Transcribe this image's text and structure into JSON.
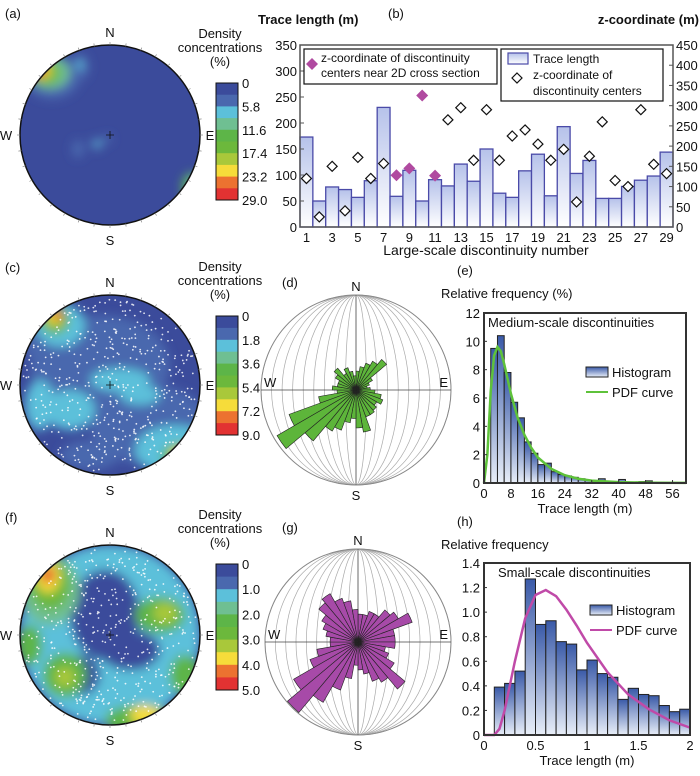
{
  "colors": {
    "colormap": [
      "#3b4b9b",
      "#4a68ae",
      "#5cc0da",
      "#6fbf92",
      "#5db548",
      "#6cb83c",
      "#a9c83a",
      "#f6dc3a",
      "#ec7230",
      "#e23232"
    ],
    "stereonet_background": "#3b4b9b",
    "bar_stroke": "#4a4aa8",
    "bar_fill_top": "#b6c2ea",
    "hist_fill_top": "#3a5aa8",
    "near_section_marker": "#b04aa0",
    "rose_d": "#5db53a",
    "rose_g": "#a74aa8",
    "pdf_e": "#5ec23a",
    "pdf_h": "#c04aa8"
  },
  "panels": {
    "a": {
      "label": "(a)",
      "compass": {
        "N": "N",
        "E": "E",
        "S": "S",
        "W": "W"
      },
      "colorbar": {
        "title": [
          "Density",
          "concentrations",
          "(%)"
        ],
        "ticks": [
          "0",
          "5.8",
          "11.6",
          "17.4",
          "23.2",
          "29.0"
        ]
      }
    },
    "b": {
      "label": "(b)"
    },
    "c": {
      "label": "(c)",
      "compass": {
        "N": "N",
        "E": "E",
        "S": "S",
        "W": "W"
      },
      "colorbar": {
        "title": [
          "Density",
          "concentrations",
          "(%)"
        ],
        "ticks": [
          "0",
          "1.8",
          "3.6",
          "5.4",
          "7.2",
          "9.0"
        ]
      }
    },
    "d": {
      "label": "(d)"
    },
    "e": {
      "label": "(e)"
    },
    "f": {
      "label": "(f)",
      "compass": {
        "N": "N",
        "E": "E",
        "S": "S",
        "W": "W"
      },
      "colorbar": {
        "title": [
          "Density",
          "concentrations",
          "(%)"
        ],
        "ticks": [
          "0",
          "1.0",
          "2.0",
          "3.0",
          "4.0",
          "5.0"
        ]
      }
    },
    "g": {
      "label": "(g)"
    },
    "h": {
      "label": "(h)"
    }
  },
  "chart_data": [
    {
      "id": "b",
      "type": "bar+scatter",
      "xlabel": "Large-scale discontinuity number",
      "ylabel": "Trace length (m)",
      "y2label": "z-coordinate (m)",
      "ylim": [
        0,
        350
      ],
      "y2lim": [
        0,
        450
      ],
      "yticks": [
        "0",
        "50",
        "100",
        "150",
        "200",
        "250",
        "300",
        "350"
      ],
      "y2ticks": [
        "0",
        "50",
        "100",
        "150",
        "200",
        "250",
        "300",
        "350",
        "400",
        "450"
      ],
      "xticks": [
        "1",
        "3",
        "5",
        "7",
        "9",
        "11",
        "13",
        "15",
        "17",
        "19",
        "21",
        "23",
        "25",
        "27",
        "29"
      ],
      "categories": [
        1,
        2,
        3,
        4,
        5,
        6,
        7,
        8,
        9,
        10,
        11,
        12,
        13,
        14,
        15,
        16,
        17,
        18,
        19,
        20,
        21,
        22,
        23,
        24,
        25,
        26,
        27,
        28,
        29
      ],
      "series": [
        {
          "name": "Trace length",
          "type": "bar",
          "axis": "left",
          "values": [
            173,
            50,
            77,
            72,
            57,
            89,
            230,
            59,
            109,
            50,
            91,
            79,
            121,
            88,
            150,
            65,
            57,
            108,
            140,
            60,
            193,
            103,
            128,
            55,
            55,
            78,
            90,
            98,
            144
          ]
        },
        {
          "name_lines": [
            "z-coordinate of",
            "discontinuity centers"
          ],
          "type": "scatter",
          "marker": "open-diamond",
          "axis": "right",
          "points": [
            [
              1,
              120
            ],
            [
              2,
              25
            ],
            [
              3,
              150
            ],
            [
              4,
              40
            ],
            [
              5,
              172
            ],
            [
              6,
              120
            ],
            [
              7,
              157
            ],
            [
              12,
              265
            ],
            [
              13,
              295
            ],
            [
              14,
              165
            ],
            [
              15,
              290
            ],
            [
              16,
              165
            ],
            [
              17,
              225
            ],
            [
              18,
              240
            ],
            [
              19,
              205
            ],
            [
              20,
              165
            ],
            [
              21,
              192
            ],
            [
              22,
              62
            ],
            [
              23,
              175
            ],
            [
              24,
              260
            ],
            [
              25,
              115
            ],
            [
              26,
              100
            ],
            [
              27,
              290
            ],
            [
              28,
              155
            ],
            [
              29,
              132
            ]
          ]
        },
        {
          "name_lines": [
            "z-coordinate of discontinuity",
            "centers near 2D cross section"
          ],
          "type": "scatter",
          "marker": "filled-diamond",
          "axis": "right",
          "points": [
            [
              8,
              128
            ],
            [
              9,
              145
            ],
            [
              10,
              325
            ],
            [
              11,
              127
            ]
          ]
        }
      ]
    },
    {
      "id": "d",
      "type": "rose",
      "bin_deg": 10,
      "compass": {
        "N": "N",
        "E": "E",
        "S": "S",
        "W": "W"
      },
      "values": [
        0.2,
        0.25,
        0.3,
        0.35,
        0.42,
        0.2,
        0.15,
        0.12,
        0.15,
        0.2,
        0.27,
        0.3,
        0.25,
        0.28,
        0.3,
        0.3,
        0.45,
        0.4,
        0.3,
        0.35,
        0.45,
        0.5,
        0.7,
        0.96,
        0.75,
        0.4,
        0.2,
        0.25,
        0.2,
        0.2,
        0.25,
        0.3,
        0.2,
        0.25,
        0.2,
        0.15
      ]
    },
    {
      "id": "e",
      "type": "bar+line",
      "title": "Medium-scale discontinuities",
      "xlabel": "Trace length (m)",
      "ylabel": "Relative frequency (%)",
      "xlim": [
        0,
        60
      ],
      "ylim": [
        0,
        12
      ],
      "xticks": [
        "0",
        "8",
        "16",
        "24",
        "32",
        "40",
        "48",
        "56"
      ],
      "yticks": [
        "0",
        "2",
        "4",
        "6",
        "8",
        "10",
        "12"
      ],
      "bin_start": 2,
      "bin_width": 2,
      "values": [
        9.5,
        10.4,
        7.8,
        5.7,
        4.6,
        2.9,
        2.1,
        1.3,
        1.4,
        0.8,
        0.6,
        0.5,
        0.4,
        0.3,
        0.2,
        0.15,
        0.3,
        0.1,
        0.1,
        0.25,
        0.05,
        0.05,
        0.1,
        0.15
      ],
      "pdf": {
        "x": [
          0,
          1,
          2,
          3,
          4,
          5,
          6,
          8,
          10,
          12,
          14,
          16,
          20,
          24,
          28,
          32,
          40,
          50,
          60
        ],
        "y": [
          0,
          2,
          6.5,
          9,
          9.6,
          9.3,
          8.4,
          6.3,
          4.6,
          3.4,
          2.5,
          1.8,
          1.0,
          0.55,
          0.3,
          0.17,
          0.06,
          0.02,
          0.01
        ]
      },
      "legend": [
        "Histogram",
        "PDF curve"
      ]
    },
    {
      "id": "g",
      "type": "rose",
      "bin_deg": 10,
      "compass": {
        "N": "N",
        "E": "E",
        "S": "S",
        "W": "W"
      },
      "values": [
        0.3,
        0.3,
        0.35,
        0.35,
        0.45,
        0.5,
        0.62,
        0.4,
        0.4,
        0.4,
        0.3,
        0.35,
        0.45,
        0.66,
        0.5,
        0.45,
        0.35,
        0.3,
        0.25,
        0.4,
        0.55,
        0.75,
        0.99,
        0.8,
        0.55,
        0.45,
        0.3,
        0.3,
        0.35,
        0.4,
        0.45,
        0.55,
        0.6,
        0.5,
        0.45,
        0.35
      ]
    },
    {
      "id": "h",
      "type": "bar+line",
      "title": "Small-scale discontinuities",
      "xlabel": "Trace length (m)",
      "ylabel": "Relative frequency",
      "xlim": [
        0,
        2
      ],
      "ylim": [
        0,
        1.4
      ],
      "xticks": [
        "0",
        "0.5",
        "1",
        "1.5",
        "2"
      ],
      "yticks": [
        "0",
        "0.2",
        "0.4",
        "0.6",
        "0.8",
        "1.0",
        "1.2",
        "1.4"
      ],
      "bin_start": 0.1,
      "bin_width": 0.1,
      "values": [
        0.39,
        0.42,
        0.52,
        1.27,
        0.9,
        0.93,
        0.76,
        0.74,
        0.53,
        0.61,
        0.5,
        0.47,
        0.29,
        0.38,
        0.33,
        0.32,
        0.24,
        0.19,
        0.21
      ],
      "pdf": {
        "x": [
          0,
          0.1,
          0.15,
          0.2,
          0.3,
          0.4,
          0.5,
          0.6,
          0.7,
          0.8,
          0.9,
          1.0,
          1.2,
          1.4,
          1.6,
          1.8,
          2.0
        ],
        "y": [
          0,
          0,
          0.05,
          0.2,
          0.6,
          0.95,
          1.14,
          1.18,
          1.13,
          1.02,
          0.89,
          0.75,
          0.51,
          0.33,
          0.21,
          0.12,
          0.06
        ]
      },
      "legend": [
        "Histogram",
        "PDF curve"
      ]
    }
  ]
}
